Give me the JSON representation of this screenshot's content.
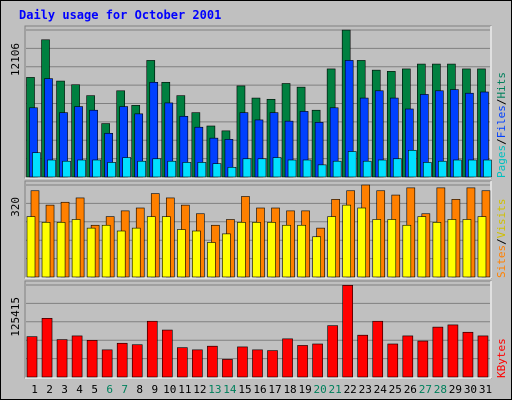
{
  "title": "Daily usage for October 2001",
  "colors": {
    "background": "#c0c0c0",
    "title": "#0000ff",
    "hits": "#008040",
    "files": "#0040ff",
    "pages": "#00e0ff",
    "visits": "#ffff00",
    "sites": "#ff8000",
    "kbytes": "#ff0000",
    "weekday_label": "#000000",
    "weekend_label": "#00805c",
    "hits_label": "#00805c",
    "files_label": "#0040ff",
    "pages_label": "#00c0c0",
    "visits_label": "#d0c000",
    "sites_label": "#ff8000",
    "kbytes_label": "#ff0000",
    "separator": "#000000"
  },
  "chart_data": [
    {
      "type": "bar",
      "panel": "hits-files-pages",
      "y_max_label": "12106",
      "ylim": [
        0,
        12106
      ],
      "right_label_parts": [
        "Pages",
        "/",
        "Files",
        "/",
        "Hits"
      ],
      "categories": [
        "1",
        "2",
        "3",
        "4",
        "5",
        "6",
        "7",
        "8",
        "9",
        "10",
        "11",
        "12",
        "13",
        "14",
        "15",
        "16",
        "17",
        "18",
        "19",
        "20",
        "21",
        "22",
        "23",
        "24",
        "25",
        "26",
        "27",
        "28",
        "29",
        "30",
        "31"
      ],
      "weekend_days": [
        6,
        7,
        13,
        14,
        20,
        21,
        27,
        28
      ],
      "series": [
        {
          "name": "Hits",
          "values": [
            8200,
            11300,
            7900,
            7600,
            6700,
            4400,
            7100,
            5900,
            9600,
            7800,
            6700,
            5300,
            4200,
            3800,
            7500,
            6500,
            6400,
            7700,
            7400,
            5500,
            8900,
            12100,
            9600,
            8800,
            8700,
            8900,
            9300,
            9300,
            9300,
            8900,
            8900
          ]
        },
        {
          "name": "Files",
          "values": [
            5700,
            8100,
            5300,
            5800,
            5500,
            3600,
            5800,
            5200,
            7800,
            6100,
            5000,
            4100,
            3200,
            3100,
            5300,
            4700,
            5300,
            4600,
            5400,
            4500,
            5700,
            9600,
            6500,
            7100,
            6500,
            5600,
            6800,
            7100,
            7200,
            6900,
            7000
          ]
        },
        {
          "name": "Pages",
          "values": [
            2000,
            1400,
            1300,
            1400,
            1400,
            1200,
            1600,
            1300,
            1500,
            1300,
            1200,
            1200,
            1100,
            800,
            1500,
            1500,
            1600,
            1400,
            1400,
            1000,
            1300,
            2100,
            1300,
            1400,
            1500,
            2200,
            1200,
            1300,
            1400,
            1400,
            1400
          ]
        }
      ]
    },
    {
      "type": "bar",
      "panel": "sites-visits",
      "y_max_label": "320",
      "ylim": [
        0,
        320
      ],
      "right_label_parts": [
        "Sites",
        "/",
        "Visits"
      ],
      "categories": [
        "1",
        "2",
        "3",
        "4",
        "5",
        "6",
        "7",
        "8",
        "9",
        "10",
        "11",
        "12",
        "13",
        "14",
        "15",
        "16",
        "17",
        "18",
        "19",
        "20",
        "21",
        "22",
        "23",
        "24",
        "25",
        "26",
        "27",
        "28",
        "29",
        "30",
        "31"
      ],
      "series": [
        {
          "name": "Visits",
          "values": [
            210,
            190,
            190,
            200,
            170,
            180,
            160,
            170,
            210,
            210,
            165,
            160,
            120,
            150,
            190,
            190,
            190,
            180,
            180,
            140,
            210,
            250,
            240,
            200,
            200,
            180,
            210,
            190,
            200,
            200,
            210
          ]
        },
        {
          "name": "Sites",
          "values": [
            300,
            250,
            260,
            275,
            180,
            210,
            230,
            240,
            290,
            275,
            250,
            220,
            180,
            200,
            280,
            240,
            240,
            230,
            230,
            170,
            270,
            300,
            320,
            300,
            285,
            310,
            220,
            310,
            270,
            310,
            300
          ]
        }
      ]
    },
    {
      "type": "bar",
      "panel": "kbytes",
      "y_max_label": "125415",
      "ylim": [
        0,
        125415
      ],
      "right_label_parts": [
        "KBytes"
      ],
      "categories": [
        "1",
        "2",
        "3",
        "4",
        "5",
        "6",
        "7",
        "8",
        "9",
        "10",
        "11",
        "12",
        "13",
        "14",
        "15",
        "16",
        "17",
        "18",
        "19",
        "20",
        "21",
        "22",
        "23",
        "24",
        "25",
        "26",
        "27",
        "28",
        "29",
        "30",
        "31"
      ],
      "series": [
        {
          "name": "KBytes",
          "values": [
            55000,
            80000,
            51000,
            56000,
            50000,
            37000,
            46000,
            44000,
            76000,
            64000,
            40000,
            37000,
            42000,
            24000,
            41000,
            37000,
            36000,
            52000,
            43000,
            45000,
            70000,
            125000,
            57000,
            76000,
            45000,
            56000,
            49000,
            68000,
            71000,
            61000,
            56000
          ]
        }
      ]
    }
  ]
}
